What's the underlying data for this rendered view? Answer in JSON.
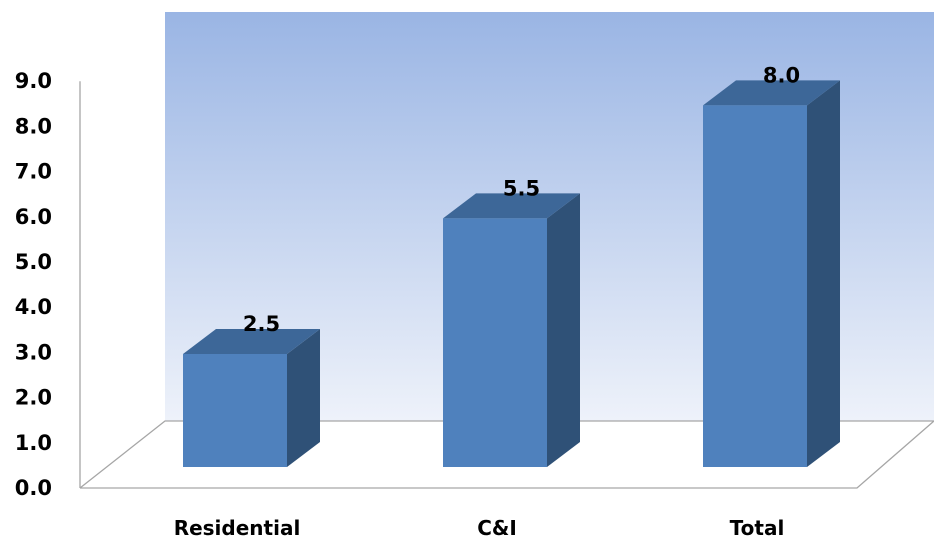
{
  "chart_data": {
    "type": "bar",
    "style": "3d-column",
    "categories": [
      "Residential",
      "C&I",
      "Total"
    ],
    "values": [
      2.5,
      5.5,
      8.0
    ],
    "data_labels": [
      "2.5",
      "5.5",
      "8.0"
    ],
    "title": "",
    "xlabel": "",
    "ylabel": "",
    "ylim": [
      0,
      9
    ],
    "y_ticks": [
      "0.0",
      "1.0",
      "2.0",
      "3.0",
      "4.0",
      "5.0",
      "6.0",
      "7.0",
      "8.0",
      "9.0"
    ],
    "grid": false,
    "legend": "none"
  },
  "colors": {
    "bar_front": "#4F81BD",
    "bar_top": "#3D6798",
    "bar_side": "#2F5177",
    "back_wall_top": "#9AB5E4",
    "back_wall_bottom": "#EEF2FA",
    "floor_edge": "#A6A6A6"
  }
}
